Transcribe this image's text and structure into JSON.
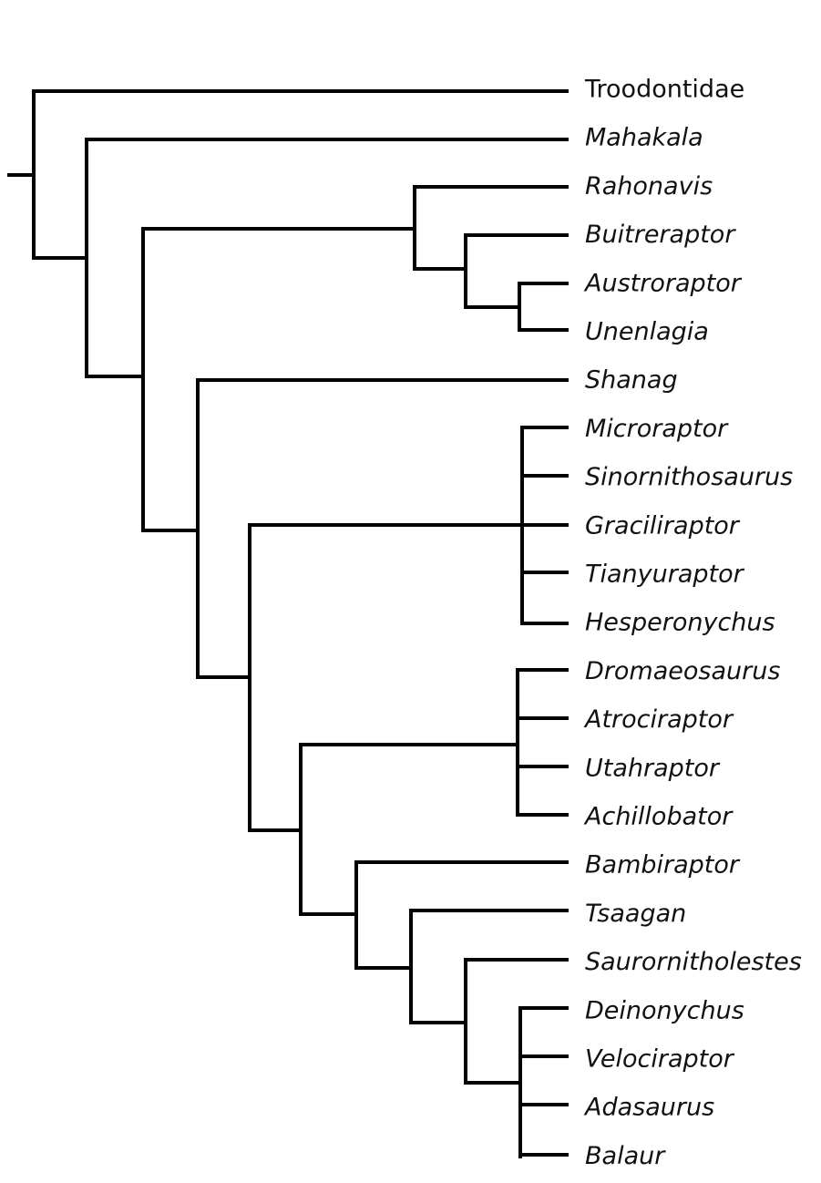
{
  "taxa": [
    "Troodontidae",
    "Mahakala",
    "Rahonavis",
    "Buitreraptor",
    "Austroraptor",
    "Unenlagia",
    "Shanag",
    "Microraptor",
    "Sinornithosaurus",
    "Graciliraptor",
    "Tianyuraptor",
    "Hesperonychus",
    "Dromaeosaurus",
    "Atrociraptor",
    "Utahraptor",
    "Achillobator",
    "Bambiraptor",
    "Tsaagan",
    "Saurornitholestes",
    "Deinonychus",
    "Velociraptor",
    "Adasaurus",
    "Balaur"
  ]
}
